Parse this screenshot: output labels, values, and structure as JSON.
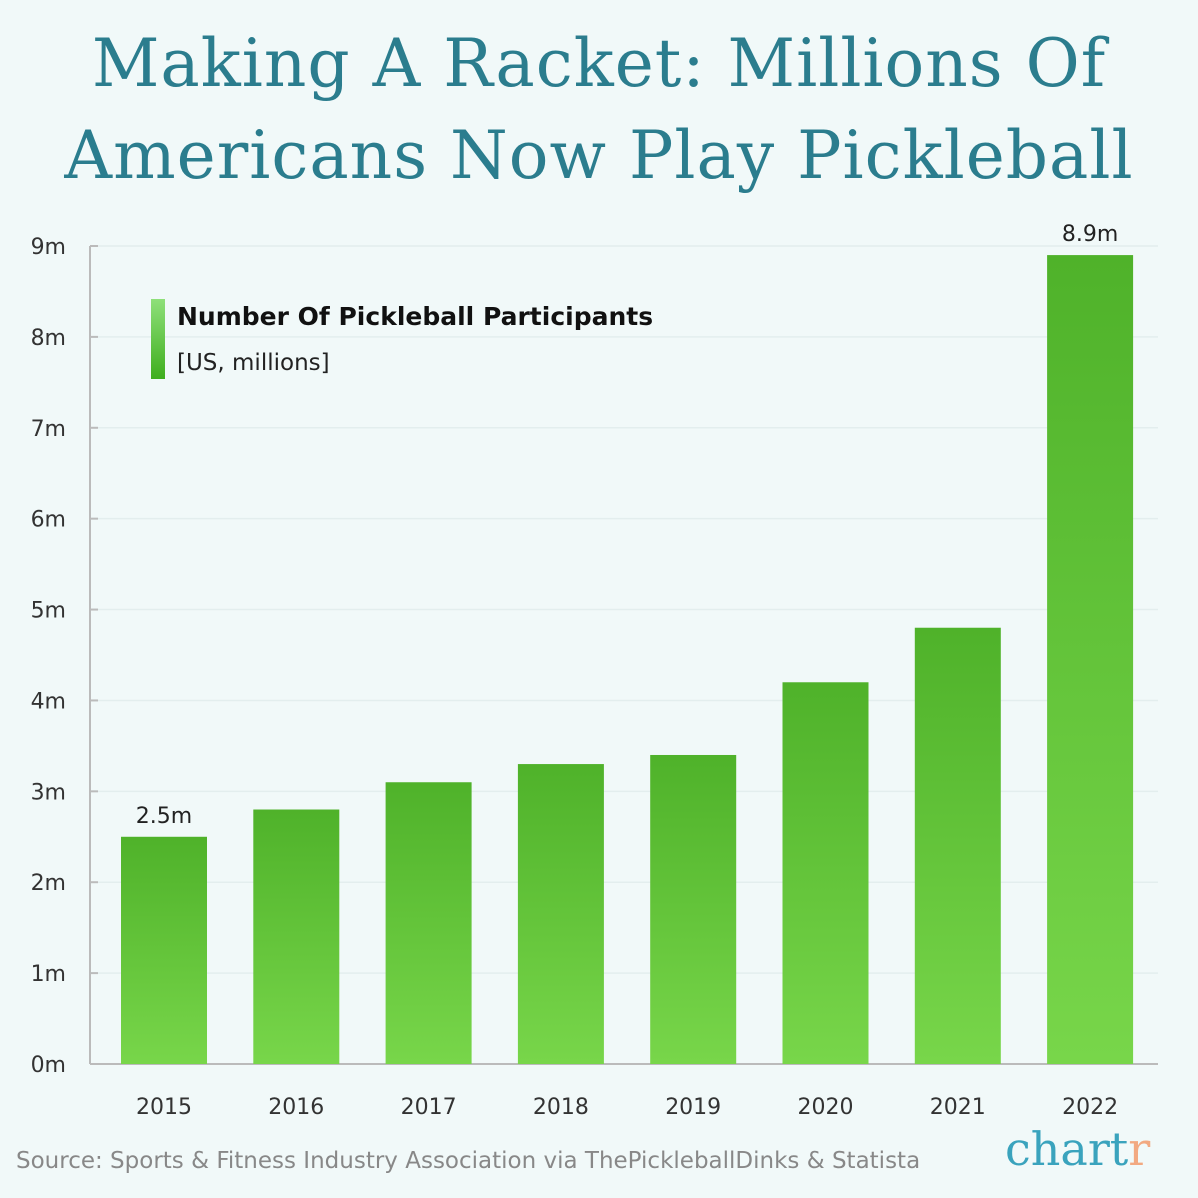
{
  "title": "Making A Racket: Millions Of Americans Now Play Pickleball",
  "chart_data": {
    "type": "bar",
    "categories": [
      "2015",
      "2016",
      "2017",
      "2018",
      "2019",
      "2020",
      "2021",
      "2022"
    ],
    "values": [
      2.5,
      2.8,
      3.1,
      3.3,
      3.4,
      4.2,
      4.8,
      8.9
    ],
    "data_labels": {
      "0": "2.5m",
      "7": "8.9m"
    },
    "ylim": [
      0,
      9
    ],
    "yticks": [
      "0m",
      "1m",
      "2m",
      "3m",
      "4m",
      "5m",
      "6m",
      "7m",
      "8m",
      "9m"
    ],
    "legend": {
      "name": "Number Of Pickleball Participants",
      "unit": "[US, millions]",
      "placement": "top-left"
    },
    "grid": true,
    "colors": {
      "bar_top": "#4fb22a",
      "bar_bottom": "#78d64a"
    }
  },
  "source": "Source: Sports & Fitness Industry Association via ThePickleballDinks & Statista",
  "logo": {
    "main": "chart",
    "accent": "r"
  }
}
